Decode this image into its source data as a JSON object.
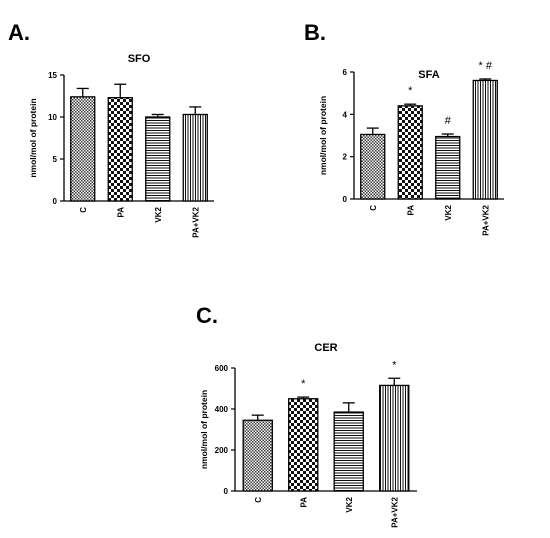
{
  "chart_data": [
    {
      "panel": "A.",
      "type": "bar",
      "title": "SFO",
      "ylabel": "nmol/mol    of protein",
      "ylim": [
        0,
        15
      ],
      "yticks": [
        "0",
        "5",
        "10",
        "15"
      ],
      "categories": [
        "C",
        "PA",
        "VK2",
        "PA+VK2"
      ],
      "values": [
        12.4,
        12.3,
        10.0,
        10.3
      ],
      "errors": [
        1.0,
        1.6,
        0.3,
        0.9
      ],
      "annotations": [
        "",
        "",
        "",
        ""
      ]
    },
    {
      "panel": "B.",
      "type": "bar",
      "title": "SFA",
      "ylabel": "nmol/mol    of protein",
      "ylim": [
        0,
        6
      ],
      "yticks": [
        "0",
        "2",
        "4",
        "6"
      ],
      "categories": [
        "C",
        "PA",
        "VK2",
        "PA+VK2"
      ],
      "values": [
        3.05,
        4.4,
        2.95,
        5.6
      ],
      "errors": [
        0.3,
        0.08,
        0.12,
        0.07
      ],
      "annotations": [
        "",
        "*",
        "#",
        "* #"
      ]
    },
    {
      "panel": "C.",
      "type": "bar",
      "title": "CER",
      "ylabel": "nmol/mol    of protein",
      "ylim": [
        0,
        600
      ],
      "yticks": [
        "0",
        "200",
        "400",
        "600"
      ],
      "categories": [
        "C",
        "PA",
        "VK2",
        "PA+VK2"
      ],
      "values": [
        345,
        450,
        385,
        515
      ],
      "errors": [
        25,
        8,
        45,
        35
      ],
      "annotations": [
        "",
        "*",
        "",
        "*"
      ]
    }
  ]
}
